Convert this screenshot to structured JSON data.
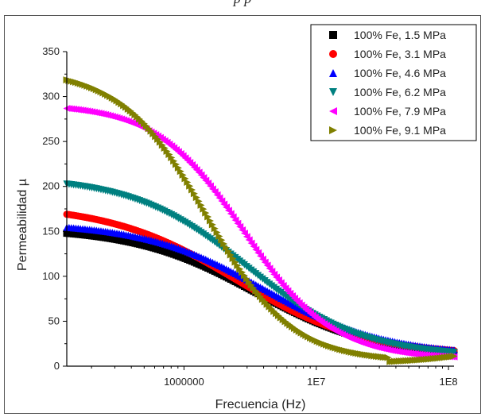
{
  "caption_fragment": "p                    p",
  "chart_data": {
    "type": "scatter",
    "title": "",
    "xlabel": "Frecuencia (Hz)",
    "ylabel": "Permeabilidad µ",
    "xscale": "log",
    "xlim": [
      130000,
      110000000
    ],
    "ylim": [
      0,
      350
    ],
    "xticks": [
      1000000,
      10000000,
      100000000
    ],
    "xtick_labels": [
      "1000000",
      "1E7",
      "1E8"
    ],
    "yticks": [
      0,
      50,
      100,
      150,
      200,
      250,
      300,
      350
    ],
    "ytick_labels": [
      "0",
      "50",
      "100",
      "150",
      "200",
      "250",
      "300",
      "350"
    ],
    "grid": false,
    "legend_position": "top-right",
    "series": [
      {
        "name": "100% Fe, 1.5 MPa",
        "marker": "square",
        "color": "#000000",
        "mu0": 154,
        "fc": 3500000,
        "n": 0.95,
        "min": 10
      },
      {
        "name": "100% Fe, 3.1 MPa",
        "marker": "circle",
        "color": "#ff0000",
        "mu0": 180,
        "fc": 2500000,
        "n": 0.9,
        "min": 12
      },
      {
        "name": "100% Fe, 4.6 MPa",
        "marker": "triangle-up",
        "color": "#0000ff",
        "mu0": 160,
        "fc": 4000000,
        "n": 0.95,
        "min": 12
      },
      {
        "name": "100% Fe, 6.2 MPa",
        "marker": "triangle-down",
        "color": "#008080",
        "mu0": 211,
        "fc": 3000000,
        "n": 1.0,
        "min": 10
      },
      {
        "name": "100% Fe, 7.9 MPa",
        "marker": "triangle-left",
        "color": "#ff00ff",
        "mu0": 292,
        "fc": 2800000,
        "n": 1.3,
        "min": 8
      },
      {
        "name": "100% Fe, 9.1 MPa",
        "marker": "triangle-right",
        "color": "#808000",
        "mu0": 330,
        "fc": 1500000,
        "n": 1.35,
        "min": 5
      }
    ]
  }
}
